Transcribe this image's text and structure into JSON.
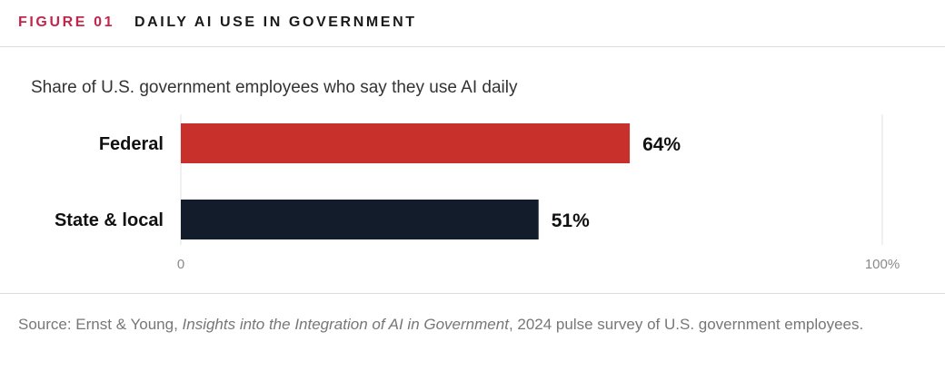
{
  "header": {
    "figure_label": "FIGURE 01",
    "title": "DAILY AI USE IN GOVERNMENT"
  },
  "colors": {
    "accent": "#c2274b",
    "federal_bar": "#c8302c",
    "state_bar": "#121c2a"
  },
  "chart_data": {
    "type": "bar",
    "orientation": "horizontal",
    "title": "Share of U.S. government employees who say they use AI daily",
    "categories": [
      "Federal",
      "State & local"
    ],
    "values": [
      64,
      51
    ],
    "value_labels": [
      "64%",
      "51%"
    ],
    "colors": [
      "#c8302c",
      "#121c2a"
    ],
    "xlim": [
      0,
      100
    ],
    "x_tick_labels": [
      "0",
      "100%"
    ],
    "grid": false
  },
  "source": {
    "prefix": "Source: Ernst & Young, ",
    "italic": "Insights into the Integration of AI in Government",
    "suffix": ", 2024 pulse survey of U.S. government employees."
  }
}
